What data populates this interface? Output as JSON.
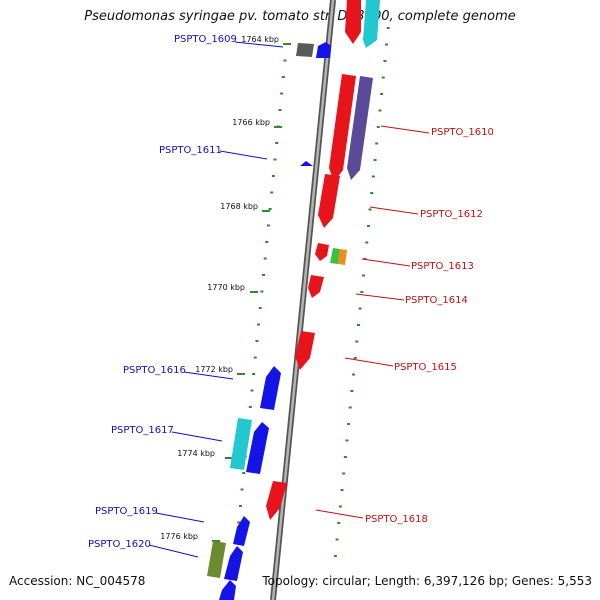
{
  "title": "Pseudomonas syringae pv. tomato str. DC3000, complete genome",
  "accession": "Accession: NC_004578",
  "topology": "Topology: circular; Length: 6,397,126 bp; Genes: 5,553",
  "colors": {
    "backbone": "#8a8a8a",
    "tick": "#2d8a2d",
    "left_label": "#1010c0",
    "right_label": "#c01010",
    "red": "#e8141c",
    "blue": "#1414e6",
    "cyan": "#22c8d0",
    "purple": "#5a4a9a",
    "gray": "#5a5a5a",
    "olive": "#6e8a2e",
    "green": "#3cbf3c",
    "orange": "#f08c1e"
  },
  "scale_ticks": [
    "1764 kbp",
    "1766 kbp",
    "1768 kbp",
    "1770 kbp",
    "1772 kbp",
    "1774 kbp",
    "1776 kbp"
  ],
  "gene_labels_left": [
    "PSPTO_1609",
    "PSPTO_1611",
    "PSPTO_1616",
    "PSPTO_1617",
    "PSPTO_1619",
    "PSPTO_1620"
  ],
  "gene_labels_right": [
    "PSPTO_1610",
    "PSPTO_1612",
    "PSPTO_1613",
    "PSPTO_1614",
    "PSPTO_1615",
    "PSPTO_1618"
  ]
}
